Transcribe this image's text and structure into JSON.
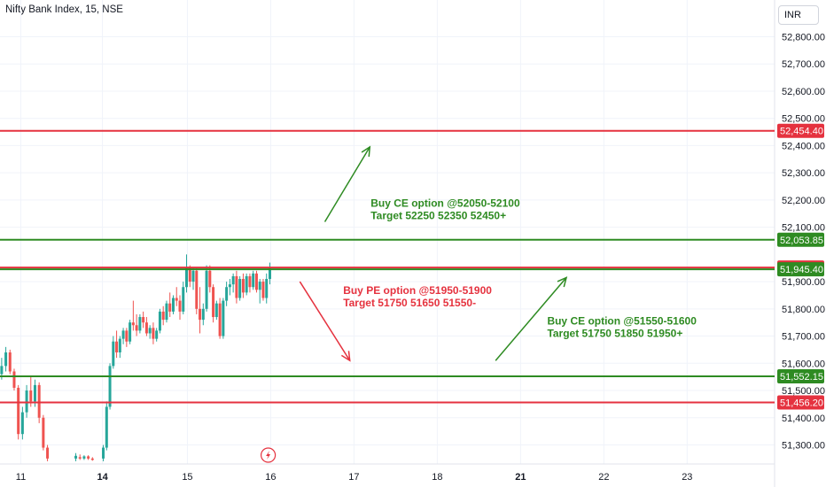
{
  "header": {
    "symbol_line": "Nifty Bank Index, 15, NSE"
  },
  "currency_selector": {
    "label": "INR"
  },
  "colors": {
    "up": "#26a69a",
    "down": "#ef5350",
    "green": "#2e8b22",
    "red": "#e5323f",
    "grid": "#f0f3fa"
  },
  "chart_data": {
    "type": "candlestick",
    "y_axis": {
      "range": [
        51230,
        52935
      ],
      "ticks": [
        {
          "value": 52800,
          "label": "52,800.00"
        },
        {
          "value": 52700,
          "label": "52,700.00"
        },
        {
          "value": 52600,
          "label": "52,600.00"
        },
        {
          "value": 52500,
          "label": "52,500.00"
        },
        {
          "value": 52400,
          "label": "52,400.00"
        },
        {
          "value": 52300,
          "label": "52,300.00"
        },
        {
          "value": 52200,
          "label": "52,200.00"
        },
        {
          "value": 52100,
          "label": "52,100.00"
        },
        {
          "value": 51900,
          "label": "51,900.00"
        },
        {
          "value": 51800,
          "label": "51,800.00"
        },
        {
          "value": 51700,
          "label": "51,700.00"
        },
        {
          "value": 51600,
          "label": "51,600.00"
        },
        {
          "value": 51500,
          "label": "51,500.00"
        },
        {
          "value": 51400,
          "label": "51,400.00"
        },
        {
          "value": 51300,
          "label": "51,300.00"
        }
      ]
    },
    "x_axis": {
      "range": [
        0,
        9.3
      ],
      "ticks": [
        {
          "value": 0.25,
          "label": "11",
          "major": false
        },
        {
          "value": 1.23,
          "label": "14",
          "major": true
        },
        {
          "value": 2.25,
          "label": "15",
          "major": false
        },
        {
          "value": 3.25,
          "label": "16",
          "major": false
        },
        {
          "value": 4.25,
          "label": "17",
          "major": false
        },
        {
          "value": 5.25,
          "label": "18",
          "major": false
        },
        {
          "value": 6.25,
          "label": "21",
          "major": true
        },
        {
          "value": 7.25,
          "label": "22",
          "major": false
        },
        {
          "value": 8.25,
          "label": "23",
          "major": false
        }
      ]
    },
    "candles": [
      {
        "x": 0.02,
        "o": 51560,
        "h": 51620,
        "l": 51540,
        "c": 51590
      },
      {
        "x": 0.07,
        "o": 51590,
        "h": 51660,
        "l": 51570,
        "c": 51640
      },
      {
        "x": 0.12,
        "o": 51640,
        "h": 51650,
        "l": 51560,
        "c": 51570
      },
      {
        "x": 0.17,
        "o": 51570,
        "h": 51580,
        "l": 51500,
        "c": 51510
      },
      {
        "x": 0.22,
        "o": 51510,
        "h": 51520,
        "l": 51320,
        "c": 51340
      },
      {
        "x": 0.27,
        "o": 51340,
        "h": 51440,
        "l": 51320,
        "c": 51420
      },
      {
        "x": 0.32,
        "o": 51420,
        "h": 51520,
        "l": 51400,
        "c": 51500
      },
      {
        "x": 0.37,
        "o": 51500,
        "h": 51550,
        "l": 51440,
        "c": 51460
      },
      {
        "x": 0.42,
        "o": 51460,
        "h": 51540,
        "l": 51440,
        "c": 51520
      },
      {
        "x": 0.47,
        "o": 51520,
        "h": 51530,
        "l": 51380,
        "c": 51400
      },
      {
        "x": 0.52,
        "o": 51400,
        "h": 51410,
        "l": 51280,
        "c": 51290
      },
      {
        "x": 0.57,
        "o": 51290,
        "h": 51300,
        "l": 51240,
        "c": 51250
      },
      {
        "x": 0.91,
        "o": 51250,
        "h": 51270,
        "l": 51240,
        "c": 51260
      },
      {
        "x": 0.96,
        "o": 51255,
        "h": 51265,
        "l": 51245,
        "c": 51250
      },
      {
        "x": 1.01,
        "o": 51250,
        "h": 51262,
        "l": 51245,
        "c": 51258
      },
      {
        "x": 1.06,
        "o": 51258,
        "h": 51262,
        "l": 51245,
        "c": 51250
      },
      {
        "x": 1.11,
        "o": 51250,
        "h": 51255,
        "l": 51242,
        "c": 51245
      },
      {
        "x": 1.24,
        "o": 51250,
        "h": 51300,
        "l": 51240,
        "c": 51290
      },
      {
        "x": 1.28,
        "o": 51290,
        "h": 51460,
        "l": 51280,
        "c": 51440
      },
      {
        "x": 1.32,
        "o": 51440,
        "h": 51600,
        "l": 51430,
        "c": 51590
      },
      {
        "x": 1.36,
        "o": 51590,
        "h": 51700,
        "l": 51580,
        "c": 51680
      },
      {
        "x": 1.4,
        "o": 51680,
        "h": 51720,
        "l": 51620,
        "c": 51640
      },
      {
        "x": 1.44,
        "o": 51640,
        "h": 51700,
        "l": 51620,
        "c": 51690
      },
      {
        "x": 1.48,
        "o": 51690,
        "h": 51730,
        "l": 51670,
        "c": 51720
      },
      {
        "x": 1.52,
        "o": 51720,
        "h": 51730,
        "l": 51660,
        "c": 51680
      },
      {
        "x": 1.56,
        "o": 51680,
        "h": 51760,
        "l": 51670,
        "c": 51750
      },
      {
        "x": 1.6,
        "o": 51750,
        "h": 51830,
        "l": 51720,
        "c": 51740
      },
      {
        "x": 1.64,
        "o": 51740,
        "h": 51780,
        "l": 51700,
        "c": 51720
      },
      {
        "x": 1.68,
        "o": 51720,
        "h": 51780,
        "l": 51710,
        "c": 51770
      },
      {
        "x": 1.72,
        "o": 51770,
        "h": 51790,
        "l": 51730,
        "c": 51750
      },
      {
        "x": 1.76,
        "o": 51750,
        "h": 51770,
        "l": 51700,
        "c": 51710
      },
      {
        "x": 1.8,
        "o": 51710,
        "h": 51740,
        "l": 51690,
        "c": 51730
      },
      {
        "x": 1.84,
        "o": 51730,
        "h": 51750,
        "l": 51670,
        "c": 51690
      },
      {
        "x": 1.88,
        "o": 51690,
        "h": 51730,
        "l": 51680,
        "c": 51720
      },
      {
        "x": 1.92,
        "o": 51720,
        "h": 51800,
        "l": 51710,
        "c": 51790
      },
      {
        "x": 1.96,
        "o": 51790,
        "h": 51810,
        "l": 51740,
        "c": 51760
      },
      {
        "x": 2.0,
        "o": 51760,
        "h": 51830,
        "l": 51750,
        "c": 51820
      },
      {
        "x": 2.04,
        "o": 51820,
        "h": 51860,
        "l": 51770,
        "c": 51790
      },
      {
        "x": 2.08,
        "o": 51790,
        "h": 51850,
        "l": 51780,
        "c": 51840
      },
      {
        "x": 2.12,
        "o": 51840,
        "h": 51880,
        "l": 51810,
        "c": 51830
      },
      {
        "x": 2.16,
        "o": 51830,
        "h": 51850,
        "l": 51760,
        "c": 51790
      },
      {
        "x": 2.2,
        "o": 51790,
        "h": 51900,
        "l": 51780,
        "c": 51880
      },
      {
        "x": 2.24,
        "o": 51880,
        "h": 52000,
        "l": 51860,
        "c": 51950
      },
      {
        "x": 2.28,
        "o": 51950,
        "h": 51960,
        "l": 51880,
        "c": 51900
      },
      {
        "x": 2.32,
        "o": 51900,
        "h": 51950,
        "l": 51870,
        "c": 51940
      },
      {
        "x": 2.36,
        "o": 51940,
        "h": 51950,
        "l": 51780,
        "c": 51800
      },
      {
        "x": 2.4,
        "o": 51800,
        "h": 51880,
        "l": 51710,
        "c": 51760
      },
      {
        "x": 2.44,
        "o": 51760,
        "h": 51820,
        "l": 51740,
        "c": 51800
      },
      {
        "x": 2.48,
        "o": 51800,
        "h": 51960,
        "l": 51790,
        "c": 51940
      },
      {
        "x": 2.52,
        "o": 51940,
        "h": 51960,
        "l": 51860,
        "c": 51880
      },
      {
        "x": 2.56,
        "o": 51880,
        "h": 51890,
        "l": 51750,
        "c": 51770
      },
      {
        "x": 2.6,
        "o": 51770,
        "h": 51830,
        "l": 51760,
        "c": 51820
      },
      {
        "x": 2.64,
        "o": 51820,
        "h": 51840,
        "l": 51690,
        "c": 51700
      },
      {
        "x": 2.68,
        "o": 51700,
        "h": 51840,
        "l": 51690,
        "c": 51830
      },
      {
        "x": 2.72,
        "o": 51830,
        "h": 51900,
        "l": 51810,
        "c": 51880
      },
      {
        "x": 2.76,
        "o": 51880,
        "h": 51910,
        "l": 51850,
        "c": 51890
      },
      {
        "x": 2.8,
        "o": 51890,
        "h": 51930,
        "l": 51860,
        "c": 51920
      },
      {
        "x": 2.84,
        "o": 51920,
        "h": 51940,
        "l": 51820,
        "c": 51840
      },
      {
        "x": 2.88,
        "o": 51840,
        "h": 51920,
        "l": 51830,
        "c": 51910
      },
      {
        "x": 2.92,
        "o": 51910,
        "h": 51930,
        "l": 51840,
        "c": 51860
      },
      {
        "x": 2.96,
        "o": 51860,
        "h": 51930,
        "l": 51850,
        "c": 51920
      },
      {
        "x": 3.0,
        "o": 51920,
        "h": 51930,
        "l": 51860,
        "c": 51880
      },
      {
        "x": 3.04,
        "o": 51880,
        "h": 51940,
        "l": 51870,
        "c": 51930
      },
      {
        "x": 3.08,
        "o": 51930,
        "h": 51940,
        "l": 51860,
        "c": 51870
      },
      {
        "x": 3.12,
        "o": 51870,
        "h": 51910,
        "l": 51820,
        "c": 51900
      },
      {
        "x": 3.16,
        "o": 51900,
        "h": 51910,
        "l": 51830,
        "c": 51840
      },
      {
        "x": 3.2,
        "o": 51840,
        "h": 51930,
        "l": 51820,
        "c": 51910
      },
      {
        "x": 3.24,
        "o": 51910,
        "h": 51970,
        "l": 51890,
        "c": 51950
      }
    ],
    "levels": [
      {
        "value": 52454.4,
        "label": "52,454.40",
        "color": "red"
      },
      {
        "value": 52053.85,
        "label": "52,053.85",
        "color": "green"
      },
      {
        "value": 51952.0,
        "label": "51,952.00",
        "color": "red"
      },
      {
        "value": 51945.4,
        "label": "51,945.40",
        "color": "green"
      },
      {
        "value": 51552.15,
        "label": "51,552.15",
        "color": "green"
      },
      {
        "value": 51456.2,
        "label": "51,456.20",
        "color": "red"
      }
    ],
    "annotations": [
      {
        "color": "green",
        "lines": [
          "Buy CE option @52050-52100",
          "Target 52250 52350 52450+"
        ],
        "x": 4.45,
        "y": 52175
      },
      {
        "color": "red",
        "lines": [
          "Buy PE option @51950-51900",
          "Target 51750 51650 51550-"
        ],
        "x": 4.12,
        "y": 51855
      },
      {
        "color": "green",
        "lines": [
          "Buy CE option @51550-51600",
          "Target 51750 51850 51950+"
        ],
        "x": 6.57,
        "y": 51742
      }
    ],
    "arrows": [
      {
        "color": "green",
        "from": [
          3.9,
          52120
        ],
        "to": [
          4.44,
          52395
        ]
      },
      {
        "color": "red",
        "from": [
          3.6,
          51900
        ],
        "to": [
          4.2,
          51610
        ]
      },
      {
        "color": "green",
        "from": [
          5.95,
          51610
        ],
        "to": [
          6.8,
          51915
        ]
      }
    ]
  }
}
